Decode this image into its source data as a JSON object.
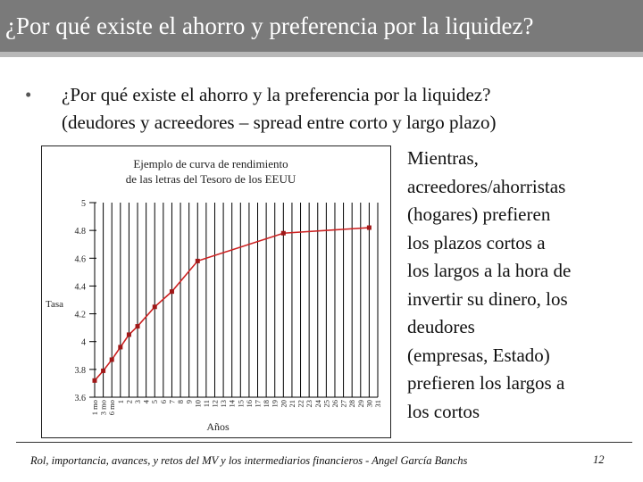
{
  "slide": {
    "title": "¿Por qué existe el ahorro y preferencia por la liquidez?",
    "bullet_symbol": "•",
    "bullet_lines": [
      "¿Por qué existe el ahorro y la preferencia por la liquidez?",
      "(deudores y acreedores – spread entre corto y largo plazo)"
    ],
    "side_text_lines": [
      "Mientras,",
      "acreedores/ahorristas",
      "(hogares) prefieren",
      "los plazos cortos a",
      "los largos a la hora   de",
      "invertir su dinero, los",
      "deudores",
      "(empresas, Estado)",
      "prefieren los largos a",
      "los cortos"
    ],
    "footer": "Rol, importancia, avances, y retos del MV y los intermediarios financieros - Angel García Banchs",
    "page_number": "12"
  },
  "colors": {
    "title_bar": "#7a7a7a",
    "line": "#cc2222",
    "marker": "#a01818",
    "grid": "#000000"
  },
  "chart_data": {
    "type": "line",
    "title_lines": [
      "Ejemplo de curva de rendimiento",
      "de las letras del Tesoro de los EEUU"
    ],
    "xlabel": "Años",
    "ylabel": "Tasa",
    "ylim": [
      3.6,
      5.0
    ],
    "yticks": [
      "3.6",
      "3.8",
      "4",
      "4.2",
      "4.4",
      "4.6",
      "4.8",
      "5"
    ],
    "categories": [
      "1 mo",
      "3 mo",
      "6 mo",
      "1",
      "2",
      "3",
      "4",
      "5",
      "6",
      "7",
      "8",
      "9",
      "10",
      "11",
      "12",
      "13",
      "14",
      "15",
      "16",
      "17",
      "18",
      "19",
      "20",
      "21",
      "22",
      "23",
      "24",
      "25",
      "26",
      "27",
      "28",
      "29",
      "30",
      "31"
    ],
    "grid": "vertical",
    "series": [
      {
        "x": [
          "1 mo",
          "3 mo",
          "6 mo",
          "1",
          "2",
          "3",
          "5",
          "7",
          "10",
          "20",
          "30"
        ],
        "values": [
          3.72,
          3.79,
          3.87,
          3.96,
          4.05,
          4.11,
          4.25,
          4.36,
          4.58,
          4.78,
          4.82
        ]
      }
    ]
  }
}
